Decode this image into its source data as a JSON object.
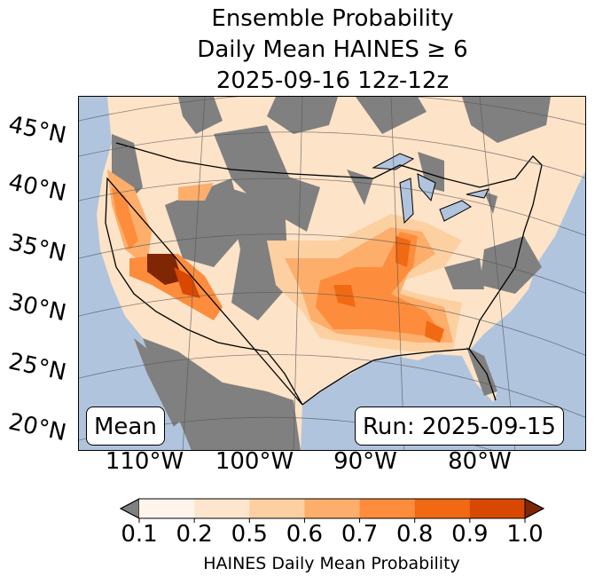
{
  "title": {
    "line1": "Ensemble Probability",
    "line2": "Daily Mean HAINES ≥ 6",
    "line3": "2025-09-16 12z-12z"
  },
  "lat_labels": [
    "45°N",
    "40°N",
    "35°N",
    "30°N",
    "25°N",
    "20°N"
  ],
  "lon_labels": [
    "110°W",
    "100°W",
    "90°W",
    "80°W"
  ],
  "annotations": {
    "left": "Mean",
    "right": "Run: 2025-09-15"
  },
  "colorbar": {
    "ticks": [
      "0.1",
      "0.2",
      "0.5",
      "0.6",
      "0.7",
      "0.8",
      "0.9",
      "1.0"
    ],
    "colors": [
      "#fff5eb",
      "#fee6ce",
      "#fdd0a2",
      "#fdae6b",
      "#fd8d3c",
      "#f16913",
      "#d94801"
    ],
    "under_color": "#808080",
    "over_color": "#7f2704",
    "label": "HAINES Daily Mean Probability"
  },
  "map_colors": {
    "ocean": "#b0c4de",
    "nodata": "#808080"
  }
}
